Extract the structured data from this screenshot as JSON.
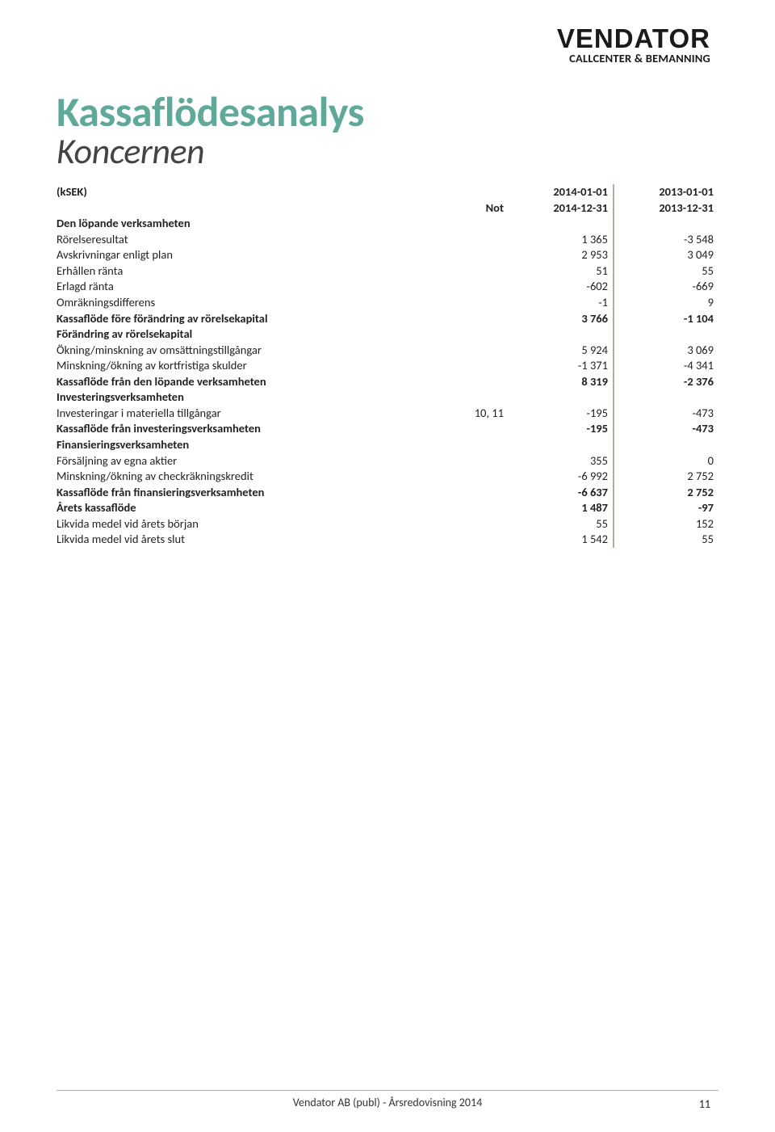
{
  "logo": {
    "main": "VENDATOR",
    "sub": "CALLCENTER & BEMANNING"
  },
  "title": {
    "main": "Kassaflödesanalys",
    "sub": "Koncernen"
  },
  "header": {
    "ksek": "(kSEK)",
    "not": "Not",
    "y1_top": "2014-01-01",
    "y1_bot": "2014-12-31",
    "y2_top": "2013-01-01",
    "y2_bot": "2013-12-31"
  },
  "sections": {
    "s1": {
      "title": "Den löpande verksamheten"
    },
    "s2": {
      "title": "Förändring av rörelsekapital"
    },
    "s3": {
      "title": "Investeringsverksamheten"
    },
    "s4": {
      "title": "Finansieringsverksamheten"
    }
  },
  "rows": {
    "r1": {
      "label": "Rörelseresultat",
      "not": "",
      "y1": "1 365",
      "y2": "-3 548"
    },
    "r2": {
      "label": "Avskrivningar enligt plan",
      "not": "",
      "y1": "2 953",
      "y2": "3 049"
    },
    "r3": {
      "label": "Erhållen ränta",
      "not": "",
      "y1": "51",
      "y2": "55"
    },
    "r4": {
      "label": "Erlagd ränta",
      "not": "",
      "y1": "-602",
      "y2": "-669"
    },
    "r5": {
      "label": "Omräkningsdifferens",
      "not": "",
      "y1": "-1",
      "y2": "9"
    },
    "r6": {
      "label": "Kassaflöde före förändring av rörelsekapital",
      "not": "",
      "y1": "3 766",
      "y2": "-1 104"
    },
    "r7": {
      "label": "Ökning/minskning av omsättningstillgångar",
      "not": "",
      "y1": "5 924",
      "y2": "3 069"
    },
    "r8": {
      "label": "Minskning/ökning av kortfristiga skulder",
      "not": "",
      "y1": "-1 371",
      "y2": "-4 341"
    },
    "r9": {
      "label": "Kassaflöde från den löpande verksamheten",
      "not": "",
      "y1": "8 319",
      "y2": "-2 376"
    },
    "r10": {
      "label": "Investeringar i materiella tillgångar",
      "not": "10, 11",
      "y1": "-195",
      "y2": "-473"
    },
    "r11": {
      "label": "Kassaflöde från investeringsverksamheten",
      "not": "",
      "y1": "-195",
      "y2": "-473"
    },
    "r12": {
      "label": "Försäljning av egna aktier",
      "not": "",
      "y1": "355",
      "y2": "0"
    },
    "r13": {
      "label": "Minskning/ökning av checkräkningskredit",
      "not": "",
      "y1": "-6 992",
      "y2": "2 752"
    },
    "r14": {
      "label": "Kassaflöde från finansieringsverksamheten",
      "not": "",
      "y1": "-6 637",
      "y2": "2 752"
    },
    "r15": {
      "label": "Årets kassaflöde",
      "not": "",
      "y1": "1 487",
      "y2": "-97"
    },
    "r16": {
      "label": "Likvida medel vid årets början",
      "not": "",
      "y1": "55",
      "y2": "152"
    },
    "r17": {
      "label": "Likvida medel vid årets slut",
      "not": "",
      "y1": "1 542",
      "y2": "55"
    }
  },
  "footer": {
    "text": "Vendator AB (publ) - Årsredovisning 2014",
    "page": "11"
  },
  "colors": {
    "title": "#5fa99a",
    "divider": "#b9aa99",
    "text": "#222222",
    "background": "#ffffff"
  }
}
